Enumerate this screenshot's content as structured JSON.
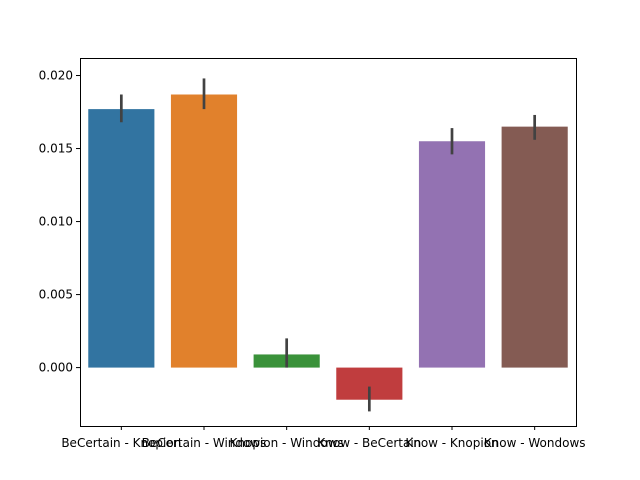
{
  "chart_data": {
    "type": "bar",
    "title": "",
    "xlabel": "",
    "ylabel": "",
    "categories": [
      "BeCertain - Knopion",
      "BeCertain - Windows",
      "Knopion - Windows",
      "Know - BeCertain",
      "Know - Knopion",
      "Know - Wondows"
    ],
    "values": [
      0.0177,
      0.0187,
      0.0009,
      -0.0022,
      0.0155,
      0.0165
    ],
    "error_low": [
      0.0168,
      0.0177,
      0.0,
      -0.003,
      0.0146,
      0.0156
    ],
    "error_high": [
      0.0187,
      0.0198,
      0.002,
      -0.0013,
      0.0164,
      0.0173
    ],
    "colors": [
      "#3274a1",
      "#e1812c",
      "#3a923a",
      "#c03d3e",
      "#9372b2",
      "#845b53"
    ],
    "error_color": "#424242",
    "ylim": [
      -0.004,
      0.0212
    ],
    "yticks": [
      0.0,
      0.005,
      0.01,
      0.015,
      0.02
    ],
    "ytick_labels": [
      "0.000",
      "0.005",
      "0.010",
      "0.015",
      "0.020"
    ],
    "grid": false,
    "legend": "none"
  }
}
